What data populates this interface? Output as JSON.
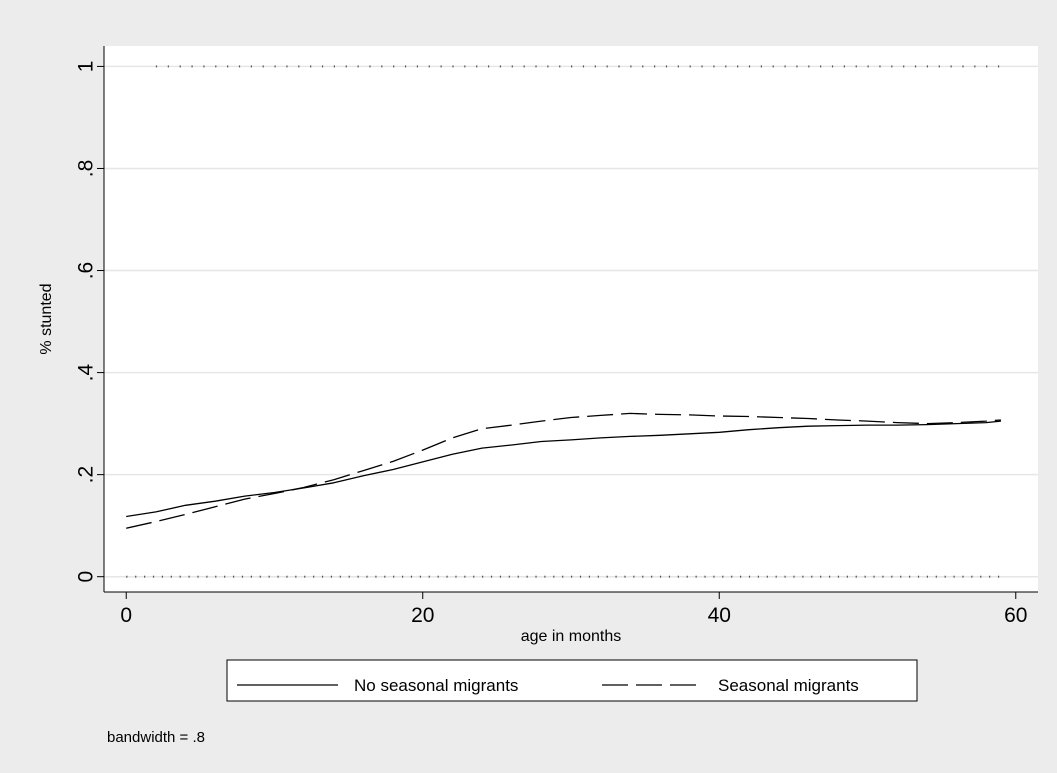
{
  "chart_data": {
    "type": "line",
    "title": "",
    "xlabel": "age in months",
    "ylabel": "% stunted",
    "xlim": [
      -1.5,
      61.5
    ],
    "ylim": [
      -0.03,
      1.04
    ],
    "x_ticks": [
      0,
      20,
      40,
      60
    ],
    "x_tick_labels": [
      "0",
      "20",
      "40",
      "60"
    ],
    "y_ticks": [
      0,
      0.2,
      0.4,
      0.6,
      0.8,
      1
    ],
    "y_tick_labels": [
      "0",
      ".2",
      ".4",
      ".6",
      ".8",
      "1"
    ],
    "grid": "horizontal",
    "legend_position": "bottom",
    "note": "bandwidth = .8",
    "colors": {
      "background": "#ececec",
      "plot_area": "#ffffff",
      "line": "#000000",
      "grid": "#e6e6e6"
    },
    "series": [
      {
        "name": "No seasonal migrants",
        "style": "solid",
        "x": [
          0,
          2,
          4,
          6,
          8,
          10,
          12,
          14,
          16,
          18,
          20,
          22,
          24,
          26,
          28,
          30,
          32,
          34,
          36,
          38,
          40,
          42,
          44,
          46,
          48,
          50,
          52,
          54,
          56,
          58,
          59
        ],
        "y": [
          0.118,
          0.127,
          0.14,
          0.148,
          0.158,
          0.165,
          0.174,
          0.184,
          0.198,
          0.21,
          0.225,
          0.24,
          0.252,
          0.258,
          0.265,
          0.268,
          0.272,
          0.275,
          0.277,
          0.28,
          0.283,
          0.288,
          0.292,
          0.295,
          0.296,
          0.297,
          0.297,
          0.298,
          0.3,
          0.302,
          0.305
        ]
      },
      {
        "name": "Seasonal migrants",
        "style": "dashed",
        "x": [
          0,
          2,
          4,
          6,
          8,
          10,
          12,
          14,
          16,
          18,
          20,
          22,
          24,
          26,
          28,
          30,
          32,
          34,
          36,
          38,
          40,
          42,
          44,
          46,
          48,
          50,
          52,
          54,
          56,
          58,
          59
        ],
        "y": [
          0.095,
          0.108,
          0.122,
          0.137,
          0.152,
          0.163,
          0.175,
          0.19,
          0.208,
          0.226,
          0.248,
          0.272,
          0.29,
          0.297,
          0.305,
          0.312,
          0.316,
          0.32,
          0.318,
          0.317,
          0.315,
          0.314,
          0.312,
          0.31,
          0.307,
          0.305,
          0.302,
          0.3,
          0.302,
          0.305,
          0.307
        ]
      }
    ],
    "rug": [
      {
        "y": 1,
        "x_start": 2,
        "x_end": 59,
        "step": 0.8
      },
      {
        "y": 0,
        "x_start": 0,
        "x_end": 59,
        "step": 0.6
      }
    ]
  }
}
